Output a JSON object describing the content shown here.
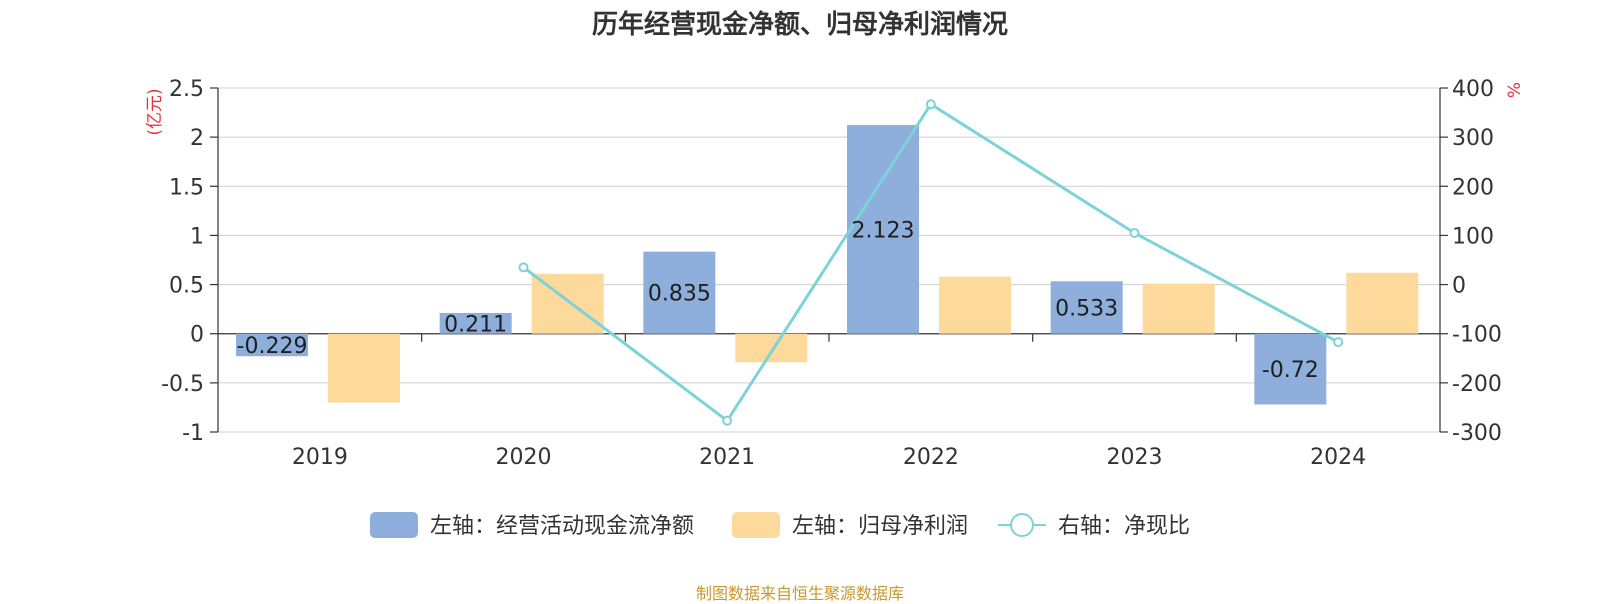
{
  "title": "历年经营现金净额、归母净利润情况",
  "source_note": "制图数据来自恒生聚源数据库",
  "chart_data": {
    "type": "bar",
    "categories": [
      "2019",
      "2020",
      "2021",
      "2022",
      "2023",
      "2024"
    ],
    "left_axis": {
      "unit": "(亿元)",
      "ylim": [
        -1,
        2.5
      ],
      "ticks": [
        -1,
        -0.5,
        0,
        0.5,
        1,
        1.5,
        2,
        2.5
      ],
      "tick_labels": [
        "-1",
        "-0.5",
        "0",
        "0.5",
        "1",
        "1.5",
        "2",
        "2.5"
      ]
    },
    "right_axis": {
      "unit": "%",
      "ylim": [
        -300,
        400
      ],
      "ticks": [
        -300,
        -200,
        -100,
        0,
        100,
        200,
        300,
        400
      ],
      "tick_labels": [
        "-300",
        "-200",
        "-100",
        "0",
        "100",
        "200",
        "300",
        "400"
      ]
    },
    "series": [
      {
        "name": "左轴：经营活动现金流净额",
        "type": "bar",
        "axis": "left",
        "color": "#8eaedb",
        "values": [
          -0.229,
          0.211,
          0.835,
          2.123,
          0.533,
          -0.72
        ],
        "labels": [
          "-0.229",
          "0.211",
          "0.835",
          "2.123",
          "0.533",
          "-0.72"
        ]
      },
      {
        "name": "左轴：归母净利润",
        "type": "bar",
        "axis": "left",
        "color": "#fdd99b",
        "values": [
          -0.7,
          0.61,
          -0.29,
          0.58,
          0.51,
          0.62
        ]
      },
      {
        "name": "右轴：净现比",
        "type": "line",
        "axis": "right",
        "color": "#7dd3d8",
        "values": [
          null,
          35,
          -277,
          367,
          105,
          -117
        ]
      }
    ],
    "grid": true,
    "legend_position": "bottom"
  }
}
